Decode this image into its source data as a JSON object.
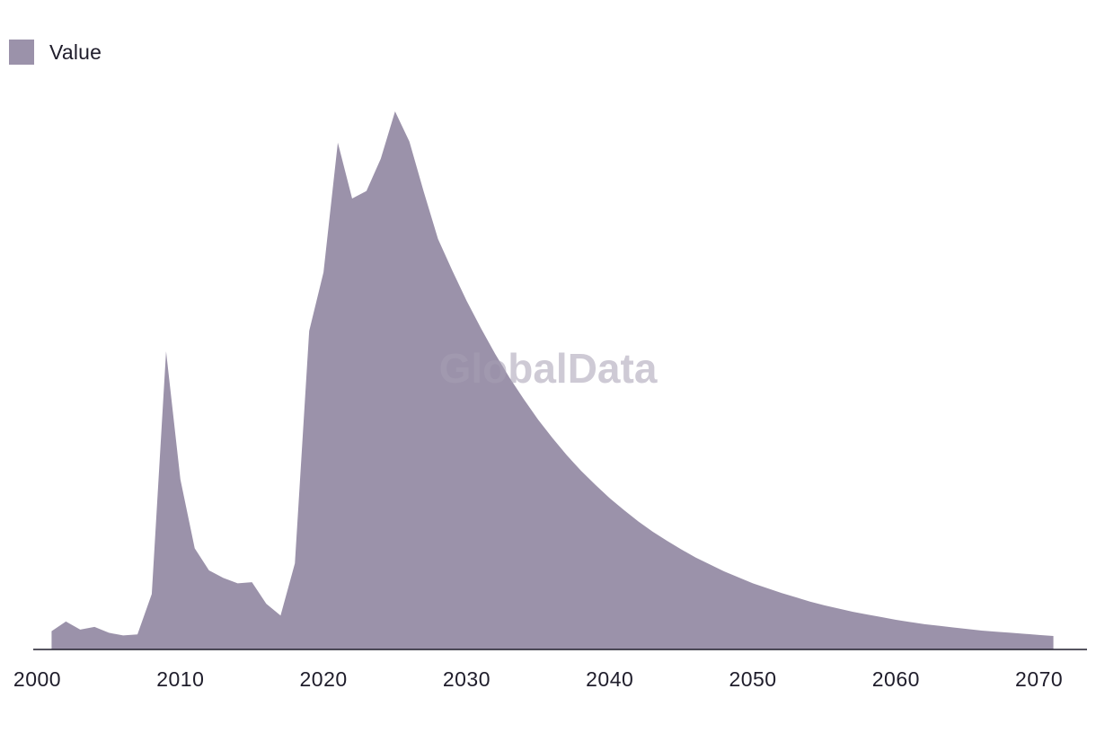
{
  "legend": {
    "label": "Value"
  },
  "watermark": "GlobalData",
  "colors": {
    "area": "#9b92aa",
    "axis": "#1f1d2b",
    "watermark": "#a69eb3"
  },
  "chart_data": {
    "type": "area",
    "title": "",
    "xlabel": "",
    "ylabel": "",
    "xlim": [
      2000,
      2072
    ],
    "ylim": [
      0,
      100
    ],
    "x_ticks": [
      2000,
      2010,
      2020,
      2030,
      2040,
      2050,
      2060,
      2070
    ],
    "grid": false,
    "legend_position": "top-left",
    "series": [
      {
        "name": "Value",
        "x": [
          2001,
          2002,
          2003,
          2004,
          2005,
          2006,
          2007,
          2008,
          2009,
          2010,
          2011,
          2012,
          2013,
          2014,
          2015,
          2016,
          2017,
          2018,
          2019,
          2020,
          2021,
          2022,
          2023,
          2024,
          2025,
          2026,
          2027,
          2028,
          2029,
          2030,
          2031,
          2032,
          2033,
          2034,
          2035,
          2036,
          2037,
          2038,
          2039,
          2040,
          2041,
          2042,
          2043,
          2044,
          2045,
          2046,
          2047,
          2048,
          2049,
          2050,
          2051,
          2052,
          2053,
          2054,
          2055,
          2056,
          2057,
          2058,
          2059,
          2060,
          2061,
          2062,
          2063,
          2064,
          2065,
          2066,
          2067,
          2068,
          2069,
          2070,
          2071
        ],
        "values": [
          3.4,
          5.2,
          3.7,
          4.2,
          3.1,
          2.6,
          2.8,
          10.3,
          55.4,
          31.6,
          18.8,
          14.7,
          13.3,
          12.3,
          12.5,
          8.5,
          6.3,
          16.0,
          59.2,
          70.1,
          94.2,
          83.8,
          85.2,
          91.2,
          100.0,
          94.4,
          85.1,
          76.3,
          70.4,
          64.8,
          59.7,
          54.9,
          50.5,
          46.5,
          42.7,
          39.3,
          36.1,
          33.2,
          30.6,
          28.1,
          25.9,
          23.8,
          21.9,
          20.2,
          18.6,
          17.1,
          15.8,
          14.5,
          13.4,
          12.3,
          11.4,
          10.5,
          9.7,
          8.9,
          8.2,
          7.6,
          7.0,
          6.5,
          6.0,
          5.5,
          5.1,
          4.7,
          4.4,
          4.1,
          3.8,
          3.5,
          3.3,
          3.1,
          2.9,
          2.7,
          2.5
        ]
      }
    ]
  }
}
